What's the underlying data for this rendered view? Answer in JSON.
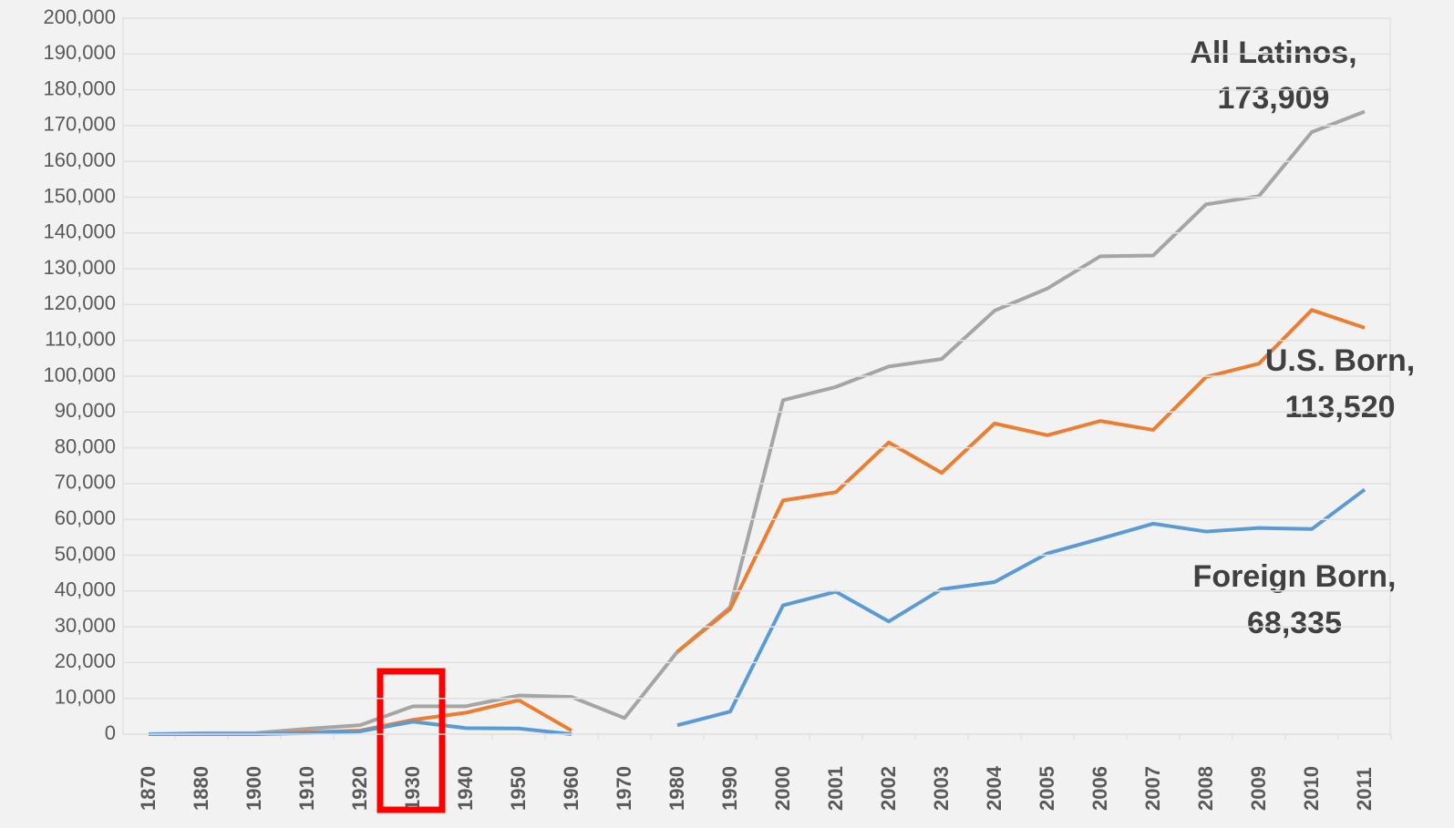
{
  "chart_data": {
    "type": "line",
    "categories": [
      "1870",
      "1880",
      "1900",
      "1910",
      "1920",
      "1930",
      "1940",
      "1950",
      "1960",
      "1970",
      "1980",
      "1990",
      "2000",
      "2001",
      "2002",
      "2003",
      "2004",
      "2005",
      "2006",
      "2007",
      "2008",
      "2009",
      "2010",
      "2011"
    ],
    "series": [
      {
        "color": "#a5a5a5",
        "values": [
          0,
          300,
          300,
          1500,
          2500,
          7800,
          7800,
          10800,
          10400,
          4500,
          23000,
          35500,
          93300,
          97000,
          102700,
          104800,
          118300,
          124500,
          133500,
          133700,
          148000,
          150300,
          168200,
          173909
        ]
      },
      {
        "color": "#ed7d31",
        "values": [
          0,
          0,
          0,
          500,
          1000,
          4000,
          6000,
          9500,
          1000,
          null,
          23000,
          35000,
          65300,
          67600,
          81500,
          73000,
          86800,
          83500,
          87500,
          85000,
          99800,
          103500,
          118500,
          113520
        ]
      },
      {
        "color": "#5b9bd5",
        "values": [
          0,
          0,
          0,
          300,
          800,
          3500,
          1700,
          1600,
          0,
          null,
          2500,
          6300,
          36000,
          39800,
          31500,
          40500,
          42500,
          50500,
          54600,
          58800,
          56600,
          57600,
          57300,
          68335
        ]
      }
    ],
    "annotations": [
      [
        "All Latinos,",
        "173,909"
      ],
      [
        "U.S. Born,",
        "113,520"
      ],
      [
        "Foreign Born,",
        "68,335"
      ]
    ],
    "ylim": [
      0,
      200000
    ],
    "yticks": [
      0,
      {
        "value": 10000,
        "label": "10,000"
      },
      {
        "value": 20000,
        "label": "20,000"
      },
      {
        "value": 30000,
        "label": "30,000"
      },
      {
        "value": 40000,
        "label": "40,000"
      },
      {
        "value": 50000,
        "label": "50,000"
      },
      {
        "value": 60000,
        "label": "60,000"
      },
      {
        "value": 70000,
        "label": "70,000"
      },
      {
        "value": 80000,
        "label": "80,000"
      },
      {
        "value": 90000,
        "label": "90,000"
      },
      {
        "value": 100000,
        "label": "100,000"
      },
      {
        "value": 110000,
        "label": "110,000"
      },
      {
        "value": 120000,
        "label": "120,000"
      },
      {
        "value": 130000,
        "label": "130,000"
      },
      {
        "value": 140000,
        "label": "140,000"
      },
      {
        "value": 150000,
        "label": "150,000"
      },
      {
        "value": 160000,
        "label": "160,000"
      },
      {
        "value": 170000,
        "label": "170,000"
      },
      {
        "value": 180000,
        "label": "180,000"
      },
      {
        "value": 190000,
        "label": "190,000"
      },
      {
        "value": 200000,
        "label": "200,000"
      }
    ],
    "grid": true
  }
}
